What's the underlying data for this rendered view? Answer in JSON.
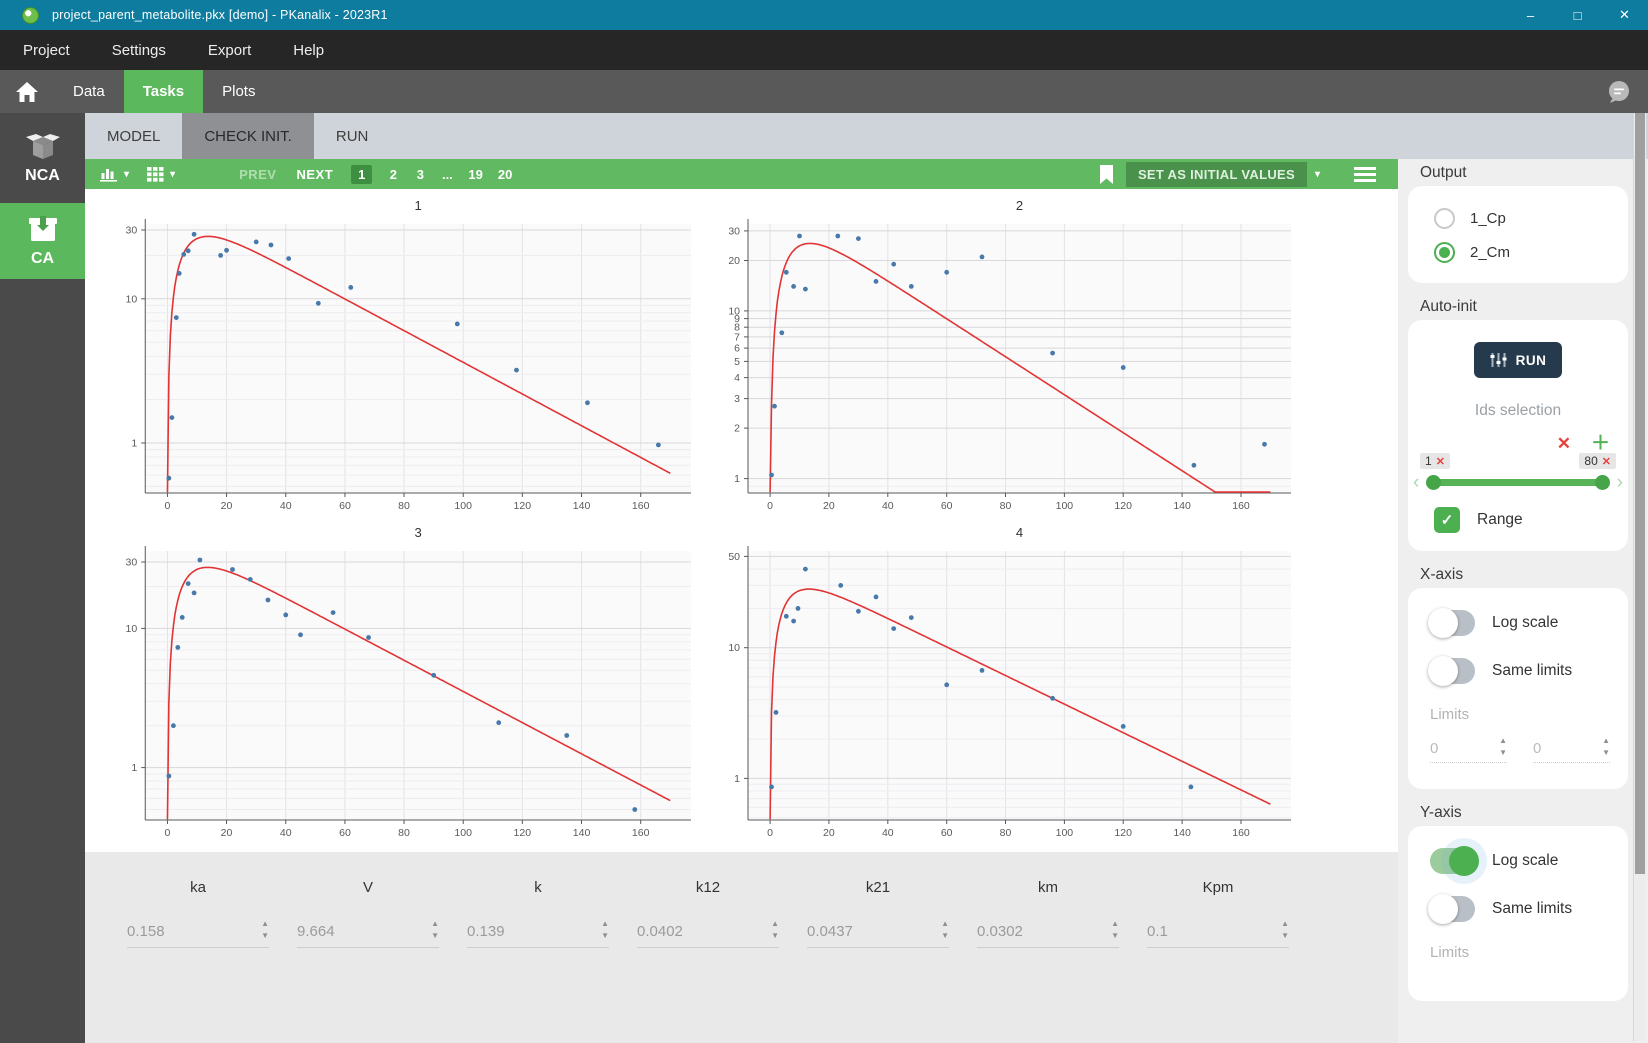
{
  "window": {
    "title": "project_parent_metabolite.pkx [demo]  - PKanalix - 2023R1"
  },
  "icons": {
    "minimize": "–",
    "maximize": "□",
    "close": "✕",
    "caret_down": "▾",
    "chevron_left": "‹",
    "chevron_right": "›",
    "check": "✓",
    "cross": "✕",
    "plus": "＋",
    "spin_up": "▲",
    "spin_down": "▼",
    "ellipsis": "..."
  },
  "menu": {
    "items": [
      "Project",
      "Settings",
      "Export",
      "Help"
    ]
  },
  "main_tabs": {
    "items": [
      "Data",
      "Tasks",
      "Plots"
    ],
    "active": "Tasks"
  },
  "sidebar": {
    "items": [
      {
        "label": "NCA",
        "active": false
      },
      {
        "label": "CA",
        "active": true
      }
    ]
  },
  "sub_tabs": {
    "items": [
      "MODEL",
      "CHECK INIT.",
      "RUN"
    ],
    "active": "CHECK INIT."
  },
  "toolbar": {
    "prev": "PREV",
    "next": "NEXT",
    "pages": [
      "1",
      "2",
      "3",
      "...",
      "19",
      "20"
    ],
    "active_page": "1",
    "set_initial": "SET AS INITIAL VALUES"
  },
  "right_panel": {
    "output": {
      "label": "Output",
      "options": [
        {
          "label": "1_Cp",
          "selected": false
        },
        {
          "label": "2_Cm",
          "selected": true
        }
      ]
    },
    "auto_init": {
      "label": "Auto-init",
      "run_label": "RUN",
      "ids_label": "Ids selection",
      "range_label": "Range",
      "range_checked": true,
      "slider": {
        "min_chip": "1",
        "max_chip": "80"
      }
    },
    "x_axis": {
      "label": "X-axis",
      "log_scale": {
        "label": "Log scale",
        "on": false
      },
      "same_limits": {
        "label": "Same limits",
        "on": false
      },
      "limits_label": "Limits",
      "limit_values": [
        "0",
        "0"
      ]
    },
    "y_axis": {
      "label": "Y-axis",
      "log_scale": {
        "label": "Log scale",
        "on": true
      },
      "same_limits": {
        "label": "Same limits",
        "on": false
      },
      "limits_label": "Limits"
    }
  },
  "params": {
    "items": [
      {
        "label": "ka",
        "value": "0.158"
      },
      {
        "label": "V",
        "value": "9.664"
      },
      {
        "label": "k",
        "value": "0.139"
      },
      {
        "label": "k12",
        "value": "0.0402"
      },
      {
        "label": "k21",
        "value": "0.0437"
      },
      {
        "label": "km",
        "value": "0.0302"
      },
      {
        "label": "Kpm",
        "value": "0.1"
      }
    ]
  },
  "colors": {
    "titlebar_teal": "#0e7c9e",
    "accent_green": "#5cb85c",
    "toggle_green": "#4caf50",
    "run_navy": "#263a4d",
    "error_red": "#e8413c",
    "curve_red": "#e23434",
    "point_blue": "#4779ab"
  },
  "chart_data": [
    {
      "type": "scatter-line",
      "title": "1",
      "y_scale": "log",
      "grid": true,
      "x_ticks": [
        0,
        20,
        40,
        60,
        80,
        100,
        120,
        140,
        160
      ],
      "xlim": [
        -7.5,
        177
      ],
      "ylim": [
        0.45,
        33
      ],
      "y_tick_labels": [
        30,
        10,
        1
      ],
      "fit_curve": {
        "model": "A*(exp(-ke*t)-exp(-ka*t))",
        "A": 45.5,
        "ka": 0.16,
        "ke": 0.0253,
        "t_end": 170
      },
      "points": [
        [
          0.5,
          0.57
        ],
        [
          1.5,
          1.5
        ],
        [
          3,
          7.4
        ],
        [
          4,
          15
        ],
        [
          5.5,
          20.3
        ],
        [
          7,
          21.5
        ],
        [
          9,
          28
        ],
        [
          18,
          20
        ],
        [
          20,
          21.7
        ],
        [
          30,
          24.8
        ],
        [
          35,
          23.6
        ],
        [
          41,
          19
        ],
        [
          51,
          9.3
        ],
        [
          62,
          12
        ],
        [
          98,
          6.7
        ],
        [
          118,
          3.2
        ],
        [
          142,
          1.9
        ],
        [
          166,
          0.97
        ]
      ]
    },
    {
      "type": "scatter-line",
      "title": "2",
      "y_scale": "log",
      "grid": true,
      "x_ticks": [
        0,
        20,
        40,
        60,
        80,
        100,
        120,
        140,
        160
      ],
      "xlim": [
        -7.5,
        177
      ],
      "ylim": [
        0.82,
        33
      ],
      "y_tick_labels": [
        30,
        20,
        10,
        9,
        8,
        7,
        6,
        5,
        4,
        3,
        2,
        1
      ],
      "fit_curve": {
        "model": "A*(exp(-ke*t)-exp(-ka*t))",
        "A": 43,
        "ka": 0.16,
        "ke": 0.0261,
        "t_end": 170
      },
      "points": [
        [
          0.5,
          1.05
        ],
        [
          1.5,
          2.7
        ],
        [
          4,
          7.4
        ],
        [
          5.5,
          17
        ],
        [
          8,
          14
        ],
        [
          10,
          28
        ],
        [
          12,
          13.5
        ],
        [
          23,
          28
        ],
        [
          30,
          27
        ],
        [
          36,
          15
        ],
        [
          42,
          19
        ],
        [
          48,
          14
        ],
        [
          60,
          17
        ],
        [
          72,
          21
        ],
        [
          96,
          5.6
        ],
        [
          120,
          4.6
        ],
        [
          144,
          1.2
        ],
        [
          168,
          1.6
        ]
      ]
    },
    {
      "type": "scatter-line",
      "title": "3",
      "y_scale": "log",
      "grid": true,
      "x_ticks": [
        0,
        20,
        40,
        60,
        80,
        100,
        120,
        140,
        160
      ],
      "xlim": [
        -7.5,
        177
      ],
      "ylim": [
        0.42,
        36
      ],
      "y_tick_labels": [
        30,
        10,
        1
      ],
      "fit_curve": {
        "model": "A*(exp(-ke*t)-exp(-ka*t))",
        "A": 46.5,
        "ka": 0.16,
        "ke": 0.0258,
        "t_end": 170
      },
      "points": [
        [
          0.5,
          0.87
        ],
        [
          2,
          2
        ],
        [
          3.5,
          7.3
        ],
        [
          5,
          12
        ],
        [
          7,
          21
        ],
        [
          9,
          18
        ],
        [
          11,
          31
        ],
        [
          22,
          26.5
        ],
        [
          28,
          22.5
        ],
        [
          34,
          16
        ],
        [
          40,
          12.5
        ],
        [
          45,
          9
        ],
        [
          56,
          13
        ],
        [
          68,
          8.6
        ],
        [
          90,
          4.6
        ],
        [
          112,
          2.1
        ],
        [
          135,
          1.7
        ],
        [
          158,
          0.5
        ]
      ]
    },
    {
      "type": "scatter-line",
      "title": "4",
      "y_scale": "log",
      "grid": true,
      "x_ticks": [
        0,
        20,
        40,
        60,
        80,
        100,
        120,
        140,
        160
      ],
      "xlim": [
        -7.5,
        177
      ],
      "ylim": [
        0.48,
        55
      ],
      "y_tick_labels": [
        50,
        10,
        1
      ],
      "fit_curve": {
        "model": "A*(exp(-ke*t)-exp(-ka*t))",
        "A": 46,
        "ka": 0.17,
        "ke": 0.0252,
        "t_end": 170
      },
      "points": [
        [
          0.5,
          0.86
        ],
        [
          2,
          3.2
        ],
        [
          5.5,
          17.4
        ],
        [
          8,
          16
        ],
        [
          9.5,
          20
        ],
        [
          12,
          40
        ],
        [
          24,
          30
        ],
        [
          30,
          19
        ],
        [
          36,
          24.5
        ],
        [
          42,
          14
        ],
        [
          48,
          17
        ],
        [
          60,
          5.2
        ],
        [
          72,
          6.7
        ],
        [
          96,
          4.1
        ],
        [
          120,
          2.5
        ],
        [
          143,
          0.86
        ]
      ]
    }
  ]
}
